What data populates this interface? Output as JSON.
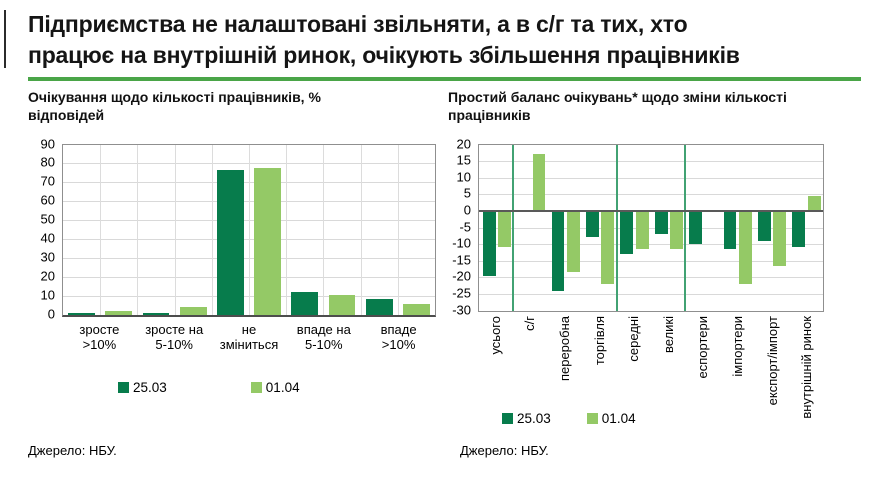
{
  "header": {
    "title_lines": [
      "Підприємства не налаштовані звільняти, а в с/г та тих, хто",
      "працює на внутрішній ринок, очікують збільшення працівників"
    ]
  },
  "footer": {
    "left_source": "Джерело: НБУ.",
    "right_source": "Джерело: НБУ."
  },
  "colors": {
    "dark_green": "#077C4C",
    "light_green": "#94C966",
    "title_rule_green": "#4AA548",
    "group_separator_green": "#42A273",
    "gridline_gray": "#D9D9D9"
  },
  "chart_data": [
    {
      "type": "bar",
      "title": "Очікування щодо кількості працівників, % відповідей",
      "categories": [
        "зросте >10%",
        "зросте на 5-10%",
        "не зміниться",
        "впаде на 5-10%",
        "впаде >10%"
      ],
      "categories_display": [
        "зросте\n>10%",
        "зросте на\n5-10%",
        "не\nзміниться",
        "впаде на\n5-10%",
        "впаде\n>10%"
      ],
      "series": [
        {
          "name": "25.03",
          "color": "#077C4C",
          "values": [
            1,
            1,
            76.5,
            12,
            8
          ]
        },
        {
          "name": "01.04",
          "color": "#94C966",
          "values": [
            2,
            4,
            77.5,
            10.5,
            5.5
          ]
        }
      ],
      "xlabel": "",
      "ylabel": "",
      "ylim": [
        0,
        90
      ],
      "ytick_step": 10,
      "grid": "horizontal+vertical",
      "legend_position": "bottom"
    },
    {
      "type": "bar",
      "title": "Простий баланс очікувань* щодо зміни кількості працівників",
      "categories": [
        "усього",
        "с/г",
        "переробна",
        "торгівля",
        "середні",
        "великі",
        "еспортери",
        "імпортери",
        "експорт/імпорт",
        "внутрішній ринок"
      ],
      "series": [
        {
          "name": "25.03",
          "color": "#077C4C",
          "values": [
            -19.5,
            0,
            -24,
            -8,
            -13,
            -7,
            -10,
            -11.5,
            -9,
            -11
          ]
        },
        {
          "name": "01.04",
          "color": "#94C966",
          "values": [
            -11,
            17,
            -18.5,
            -22,
            -11.5,
            -11.5,
            0,
            -22,
            -16.5,
            4.5
          ]
        }
      ],
      "xlabel": "",
      "ylabel": "",
      "ylim": [
        -30,
        20
      ],
      "ytick_step": 5,
      "grid": "horizontal",
      "group_separators_after": [
        "усього",
        "торгівля",
        "великі"
      ],
      "x_labels_rotated_90": true,
      "legend_position": "bottom"
    }
  ]
}
